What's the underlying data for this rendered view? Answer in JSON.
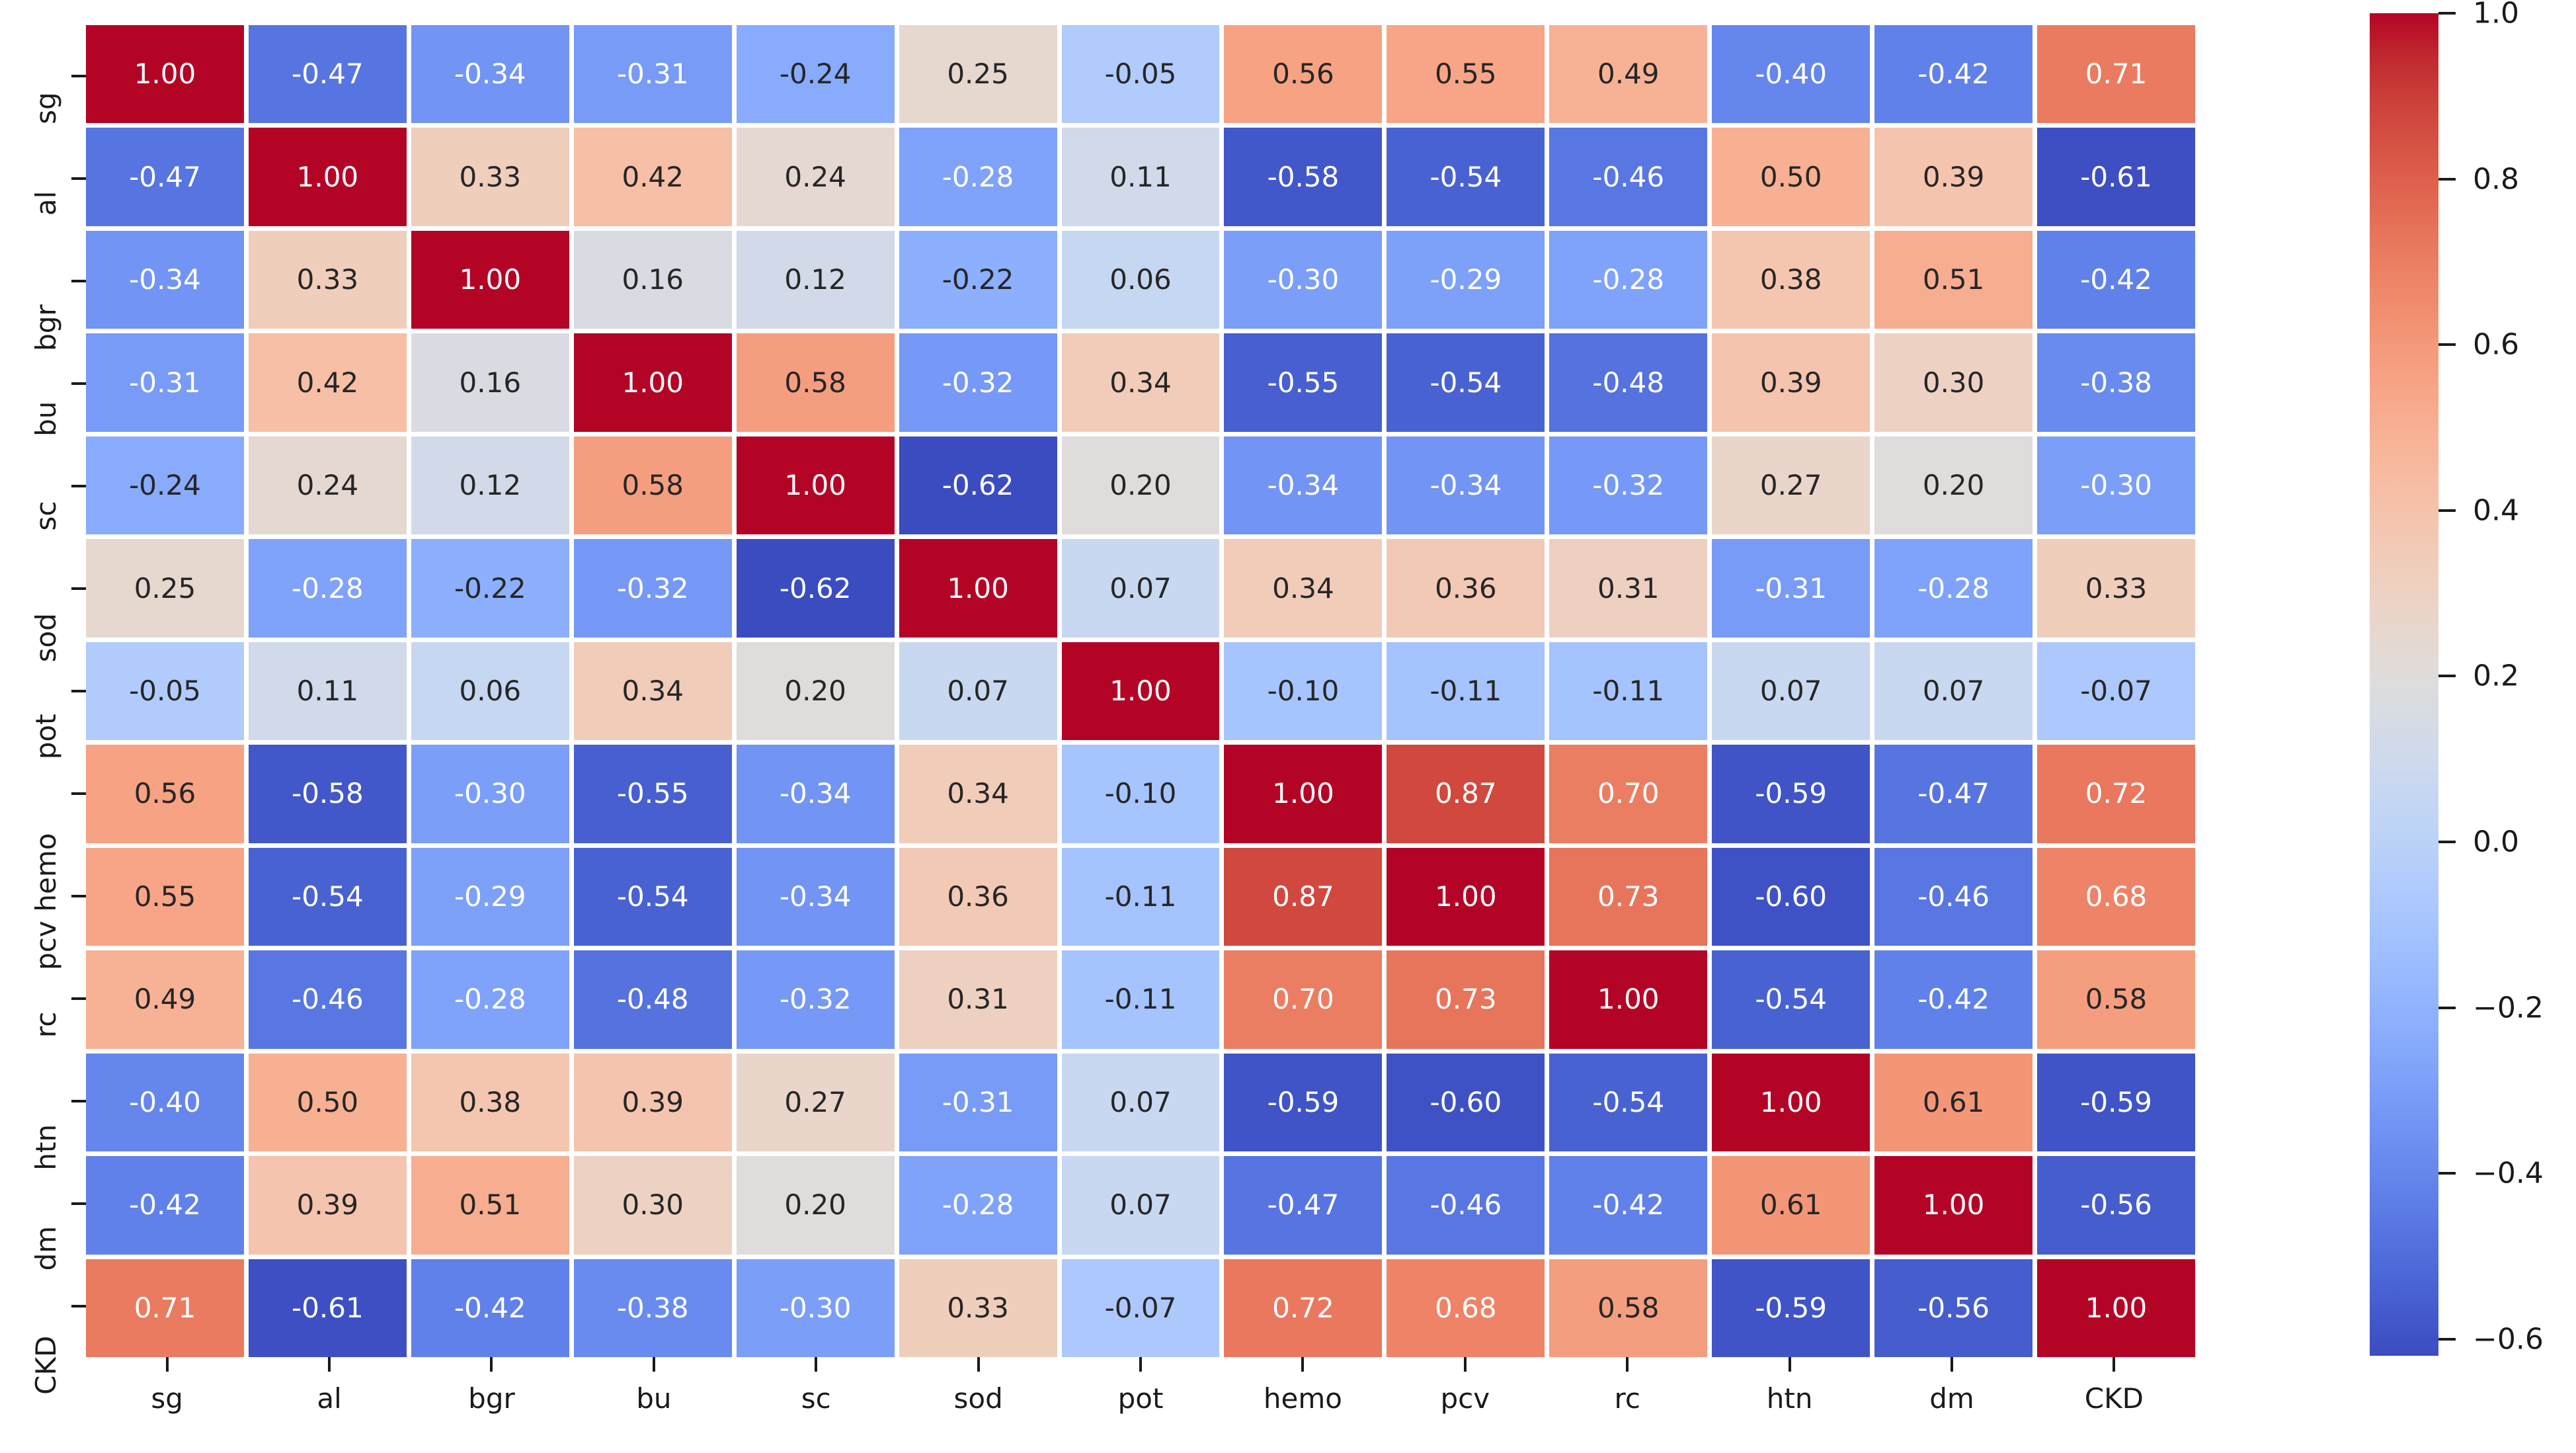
{
  "chart_data": {
    "type": "heatmap",
    "title": "",
    "xlabel": "",
    "ylabel": "",
    "categories": [
      "sg",
      "al",
      "bgr",
      "bu",
      "sc",
      "sod",
      "pot",
      "hemo",
      "pcv",
      "rc",
      "htn",
      "dm",
      "CKD"
    ],
    "matrix": [
      [
        1.0,
        -0.47,
        -0.34,
        -0.31,
        -0.24,
        0.25,
        -0.05,
        0.56,
        0.55,
        0.49,
        -0.4,
        -0.42,
        0.71
      ],
      [
        -0.47,
        1.0,
        0.33,
        0.42,
        0.24,
        -0.28,
        0.11,
        -0.58,
        -0.54,
        -0.46,
        0.5,
        0.39,
        -0.61
      ],
      [
        -0.34,
        0.33,
        1.0,
        0.16,
        0.12,
        -0.22,
        0.06,
        -0.3,
        -0.29,
        -0.28,
        0.38,
        0.51,
        -0.42
      ],
      [
        -0.31,
        0.42,
        0.16,
        1.0,
        0.58,
        -0.32,
        0.34,
        -0.55,
        -0.54,
        -0.48,
        0.39,
        0.3,
        -0.38
      ],
      [
        -0.24,
        0.24,
        0.12,
        0.58,
        1.0,
        -0.62,
        0.2,
        -0.34,
        -0.34,
        -0.32,
        0.27,
        0.2,
        -0.3
      ],
      [
        0.25,
        -0.28,
        -0.22,
        -0.32,
        -0.62,
        1.0,
        0.07,
        0.34,
        0.36,
        0.31,
        -0.31,
        -0.28,
        0.33
      ],
      [
        -0.05,
        0.11,
        0.06,
        0.34,
        0.2,
        0.07,
        1.0,
        -0.1,
        -0.11,
        -0.11,
        0.07,
        0.07,
        -0.07
      ],
      [
        0.56,
        -0.58,
        -0.3,
        -0.55,
        -0.34,
        0.34,
        -0.1,
        1.0,
        0.87,
        0.7,
        -0.59,
        -0.47,
        0.72
      ],
      [
        0.55,
        -0.54,
        -0.29,
        -0.54,
        -0.34,
        0.36,
        -0.11,
        0.87,
        1.0,
        0.73,
        -0.6,
        -0.46,
        0.68
      ],
      [
        0.49,
        -0.46,
        -0.28,
        -0.48,
        -0.32,
        0.31,
        -0.11,
        0.7,
        0.73,
        1.0,
        -0.54,
        -0.42,
        0.58
      ],
      [
        -0.4,
        0.5,
        0.38,
        0.39,
        0.27,
        -0.31,
        0.07,
        -0.59,
        -0.6,
        -0.54,
        1.0,
        0.61,
        -0.59
      ],
      [
        -0.42,
        0.39,
        0.51,
        0.3,
        0.2,
        -0.28,
        0.07,
        -0.47,
        -0.46,
        -0.42,
        0.61,
        1.0,
        -0.56
      ],
      [
        0.71,
        -0.61,
        -0.42,
        -0.38,
        -0.3,
        0.33,
        -0.07,
        0.72,
        0.68,
        0.58,
        -0.59,
        -0.56,
        1.0
      ]
    ],
    "value_decimals": 2,
    "vmin": -0.62,
    "vmax": 1.0,
    "colormap": {
      "name": "coolwarm",
      "low": "#3b4cc0",
      "mid": "#dddddd",
      "high": "#b40426"
    },
    "annotation_colors": {
      "on_dark": "#ffffff",
      "on_light": "#262626"
    },
    "grid_line_color": "#ffffff",
    "legend_position": "right",
    "colorbar": {
      "ticks": [
        {
          "label": "1.0",
          "value": 1.0
        },
        {
          "label": "0.8",
          "value": 0.8
        },
        {
          "label": "0.6",
          "value": 0.6
        },
        {
          "label": "0.4",
          "value": 0.4
        },
        {
          "label": "0.2",
          "value": 0.2
        },
        {
          "label": "0.0",
          "value": 0.0
        },
        {
          "label": "−0.2",
          "value": -0.2
        },
        {
          "label": "−0.4",
          "value": -0.4
        },
        {
          "label": "−0.6",
          "value": -0.6
        }
      ]
    }
  }
}
